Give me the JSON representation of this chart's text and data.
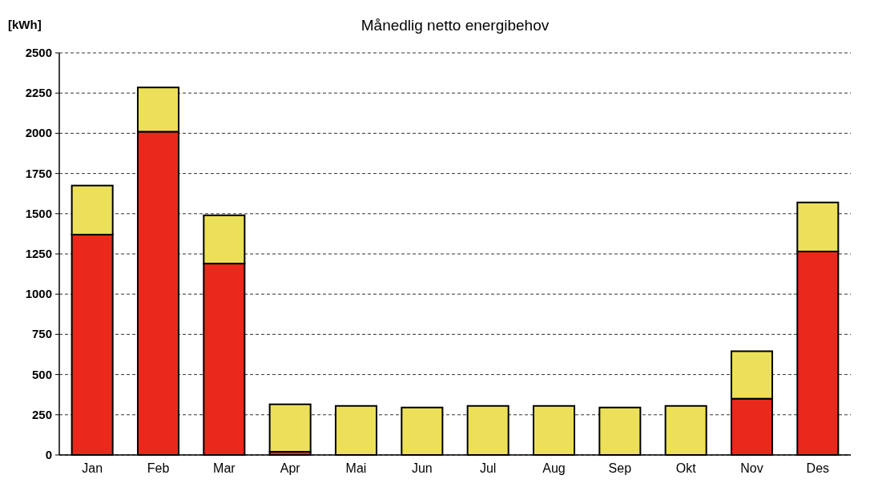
{
  "chart_data": {
    "type": "bar",
    "title": "Månedlig netto energibehov",
    "ylabel": "[kWh]",
    "categories": [
      "Jan",
      "Feb",
      "Mar",
      "Apr",
      "Mai",
      "Jun",
      "Jul",
      "Aug",
      "Sep",
      "Okt",
      "Nov",
      "Des"
    ],
    "stacked": true,
    "series": [
      {
        "color": "#e8291c",
        "values": [
          1370,
          2010,
          1190,
          20,
          0,
          0,
          0,
          0,
          0,
          0,
          350,
          1265
        ]
      },
      {
        "color": "#ece05a",
        "values": [
          305,
          275,
          300,
          295,
          305,
          295,
          305,
          305,
          295,
          305,
          295,
          305
        ]
      }
    ],
    "ylim": [
      0,
      2500
    ],
    "yticks": [
      0,
      250,
      500,
      750,
      1000,
      1250,
      1500,
      1750,
      2000,
      2250,
      2500
    ],
    "grid": "y"
  }
}
